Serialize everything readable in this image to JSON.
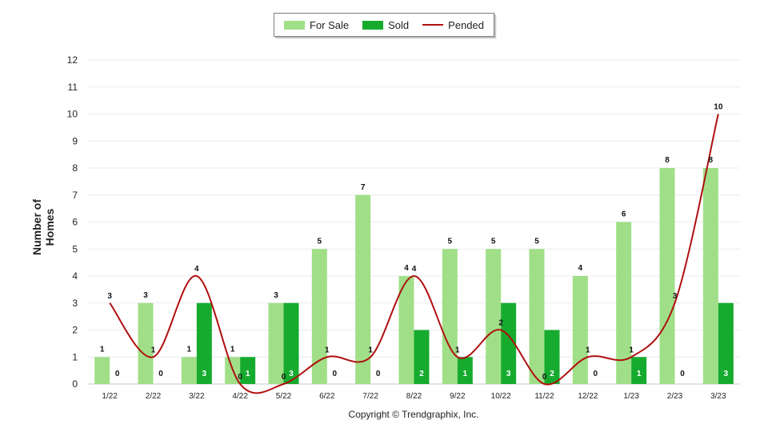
{
  "chart_data": {
    "type": "bar",
    "categories": [
      "1/22",
      "2/22",
      "3/22",
      "4/22",
      "5/22",
      "6/22",
      "7/22",
      "8/22",
      "9/22",
      "10/22",
      "11/22",
      "12/22",
      "1/23",
      "2/23",
      "3/23"
    ],
    "series": [
      {
        "name": "For Sale",
        "type": "bar",
        "color": "#a0df88",
        "values": [
          1,
          3,
          1,
          1,
          3,
          5,
          7,
          4,
          5,
          5,
          5,
          4,
          6,
          8,
          8
        ]
      },
      {
        "name": "Sold",
        "type": "bar",
        "color": "#16ab2e",
        "values": [
          0,
          0,
          3,
          1,
          3,
          0,
          0,
          2,
          1,
          3,
          2,
          0,
          1,
          0,
          3
        ]
      },
      {
        "name": "Pended",
        "type": "line",
        "color": "#b01010",
        "values": [
          3,
          1,
          4,
          0,
          0,
          1,
          1,
          4,
          1,
          2,
          0,
          1,
          1,
          3,
          10
        ]
      }
    ],
    "ylabel": "Number of Homes",
    "ylim": [
      0,
      12
    ],
    "yticks": [
      0,
      1,
      2,
      3,
      4,
      5,
      6,
      7,
      8,
      9,
      10,
      11,
      12
    ],
    "grid": true,
    "legend_position": "top-center"
  },
  "footer": "Copyright © Trendgraphix, Inc."
}
